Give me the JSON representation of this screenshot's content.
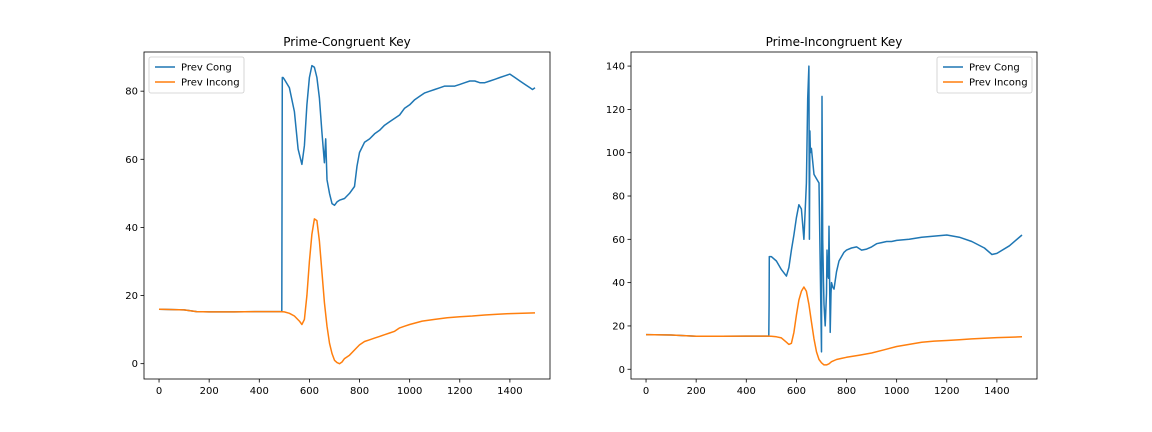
{
  "chart_data": [
    {
      "type": "line",
      "title": "Prime-Congruent Key",
      "xlim": [
        -60,
        1560
      ],
      "ylim": [
        -4.5,
        91.5
      ],
      "xticks": [
        0,
        200,
        400,
        600,
        800,
        1000,
        1200,
        1400
      ],
      "yticks": [
        0,
        20,
        40,
        60,
        80
      ],
      "legend_position": "upper-left",
      "colors": [
        "#1f77b4",
        "#ff7f0e"
      ],
      "series": [
        {
          "name": "Prev Cong",
          "x": [
            0,
            100,
            150,
            200,
            300,
            400,
            490,
            491,
            492,
            495,
            500,
            520,
            540,
            555,
            570,
            580,
            590,
            600,
            610,
            620,
            630,
            640,
            650,
            660,
            665,
            670,
            680,
            690,
            700,
            710,
            720,
            740,
            760,
            780,
            790,
            800,
            820,
            840,
            860,
            880,
            900,
            920,
            940,
            960,
            980,
            1000,
            1020,
            1040,
            1060,
            1080,
            1100,
            1120,
            1140,
            1160,
            1180,
            1200,
            1220,
            1240,
            1260,
            1280,
            1300,
            1320,
            1340,
            1360,
            1380,
            1400,
            1420,
            1440,
            1460,
            1480,
            1490,
            1500
          ],
          "y": [
            16,
            15.8,
            15.3,
            15.2,
            15.2,
            15.3,
            15.3,
            60,
            84,
            84,
            83.5,
            81,
            74,
            63,
            58.5,
            64,
            76,
            84,
            87.5,
            87,
            84,
            78,
            68,
            59,
            66,
            54,
            50,
            47,
            46.5,
            47.5,
            48,
            48.5,
            50,
            52,
            58,
            62,
            65,
            66,
            67.5,
            68.5,
            70,
            71,
            72,
            73,
            75,
            76,
            77.5,
            78.5,
            79.5,
            80,
            80.5,
            81,
            81.5,
            81.5,
            81.5,
            82,
            82.5,
            83,
            83,
            82.5,
            82.5,
            83,
            83.5,
            84,
            84.5,
            85,
            84,
            83,
            82,
            81,
            80.5,
            81
          ]
        },
        {
          "name": "Prev Incong",
          "x": [
            0,
            100,
            150,
            200,
            300,
            400,
            480,
            500,
            520,
            540,
            560,
            570,
            580,
            590,
            600,
            610,
            620,
            630,
            640,
            650,
            660,
            670,
            680,
            690,
            700,
            710,
            720,
            730,
            740,
            760,
            780,
            800,
            820,
            840,
            860,
            880,
            900,
            920,
            940,
            960,
            980,
            1000,
            1050,
            1100,
            1150,
            1200,
            1250,
            1300,
            1350,
            1400,
            1450,
            1500
          ],
          "y": [
            16,
            15.8,
            15.3,
            15.2,
            15.2,
            15.3,
            15.3,
            15.2,
            14.8,
            14,
            12.5,
            11.5,
            13,
            20,
            30,
            38,
            42.5,
            42,
            36,
            27,
            18,
            11,
            6,
            3,
            1,
            0.3,
            0,
            0.5,
            1.5,
            2.5,
            4,
            5.5,
            6.5,
            7,
            7.5,
            8,
            8.5,
            9,
            9.5,
            10.5,
            11,
            11.5,
            12.5,
            13,
            13.5,
            13.8,
            14,
            14.3,
            14.5,
            14.7,
            14.8,
            14.9
          ]
        }
      ]
    },
    {
      "type": "line",
      "title": "Prime-Incongruent Key",
      "xlim": [
        -60,
        1560
      ],
      "ylim": [
        -4.5,
        146.5
      ],
      "xticks": [
        0,
        200,
        400,
        600,
        800,
        1000,
        1200,
        1400
      ],
      "yticks": [
        0,
        20,
        40,
        60,
        80,
        100,
        120,
        140
      ],
      "legend_position": "upper-right",
      "colors": [
        "#1f77b4",
        "#ff7f0e"
      ],
      "series": [
        {
          "name": "Prev Cong",
          "x": [
            0,
            100,
            200,
            300,
            400,
            490,
            491,
            492,
            500,
            520,
            540,
            560,
            570,
            580,
            590,
            600,
            610,
            620,
            630,
            640,
            645,
            650,
            652,
            654,
            656,
            660,
            665,
            670,
            680,
            690,
            700,
            702,
            705,
            708,
            710,
            715,
            720,
            722,
            725,
            728,
            730,
            735,
            738,
            740,
            745,
            750,
            760,
            770,
            780,
            790,
            800,
            820,
            840,
            860,
            880,
            900,
            920,
            940,
            960,
            980,
            1000,
            1050,
            1100,
            1150,
            1200,
            1250,
            1300,
            1350,
            1380,
            1400,
            1450,
            1500
          ],
          "y": [
            16,
            15.8,
            15.2,
            15.2,
            15.3,
            15.3,
            30,
            52,
            52,
            50,
            46,
            43,
            47,
            55,
            62,
            70,
            76,
            74,
            60,
            86,
            125,
            140,
            60,
            110,
            100,
            102,
            96,
            90,
            88,
            86,
            8,
            126,
            60,
            40,
            30,
            20,
            35,
            55,
            44,
            42,
            66,
            17,
            35,
            40,
            38,
            37,
            45,
            50,
            52,
            54,
            55,
            56,
            56.5,
            55,
            55.5,
            56.5,
            58,
            58.5,
            59,
            59,
            59.5,
            60,
            61,
            61.5,
            62,
            61,
            59,
            56,
            53,
            53.5,
            57,
            62
          ]
        },
        {
          "name": "Prev Incong",
          "x": [
            0,
            100,
            200,
            300,
            400,
            480,
            500,
            520,
            540,
            560,
            570,
            580,
            590,
            600,
            610,
            620,
            630,
            640,
            650,
            660,
            670,
            680,
            690,
            700,
            710,
            720,
            730,
            740,
            760,
            780,
            800,
            850,
            900,
            950,
            1000,
            1050,
            1100,
            1150,
            1200,
            1250,
            1300,
            1350,
            1400,
            1450,
            1500
          ],
          "y": [
            16,
            15.8,
            15.2,
            15.2,
            15.3,
            15.3,
            15.2,
            15,
            14.5,
            12.5,
            11.5,
            12,
            17,
            25,
            32,
            36,
            38,
            36,
            30,
            22,
            14,
            8,
            4.5,
            3,
            2,
            2,
            2.5,
            3.5,
            4.5,
            5,
            5.5,
            6.5,
            7.5,
            9,
            10.5,
            11.5,
            12.5,
            13,
            13.3,
            13.6,
            14,
            14.3,
            14.6,
            14.8,
            15
          ]
        }
      ]
    }
  ]
}
